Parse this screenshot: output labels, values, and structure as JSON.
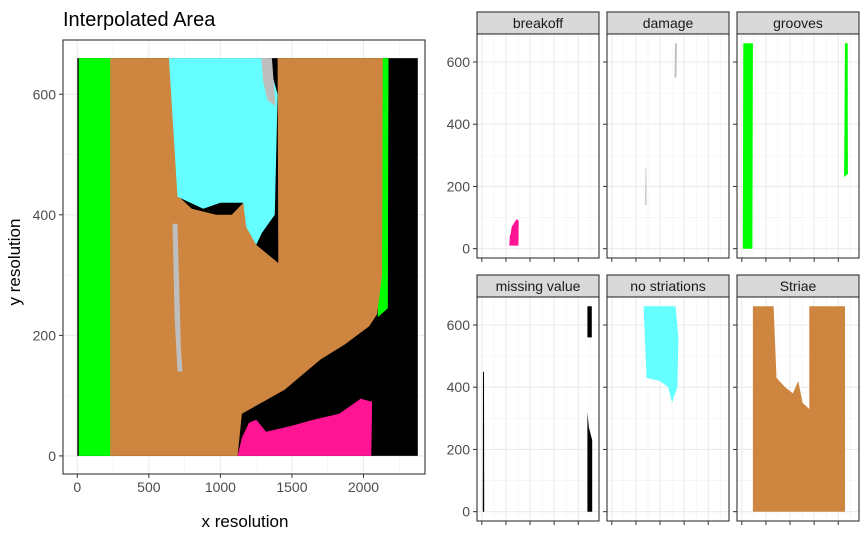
{
  "chart_data": [
    {
      "type": "heatmap",
      "title": "Interpolated Area",
      "xlabel": "x resolution",
      "ylabel": "y resolution",
      "x_ticks": [
        0,
        500,
        1000,
        1500,
        2000
      ],
      "y_ticks": [
        0,
        200,
        400,
        600
      ],
      "xlim": [
        -100,
        2430
      ],
      "ylim": [
        -30,
        690
      ],
      "grid": true,
      "categories": [
        "breakoff",
        "damage",
        "grooves",
        "missing value",
        "no striations",
        "Striae"
      ],
      "colors": {
        "breakoff": "#ff1493",
        "damage": "#bebebe",
        "grooves": "#00ff00",
        "missing value": "#000000",
        "no striations": "#66ffff",
        "Striae": "#cd853f"
      },
      "regions": [
        {
          "category": "missing value",
          "polygon": [
            [
              0,
              0
            ],
            [
              2380,
              0
            ],
            [
              2380,
              660
            ],
            [
              0,
              660
            ]
          ]
        },
        {
          "category": "grooves",
          "polygon": [
            [
              10,
              0
            ],
            [
              250,
              0
            ],
            [
              250,
              660
            ],
            [
              10,
              660
            ]
          ]
        },
        {
          "category": "grooves",
          "polygon": [
            [
              2100,
              230
            ],
            [
              2170,
              245
            ],
            [
              2175,
              660
            ],
            [
              2115,
              660
            ],
            [
              2110,
              380
            ]
          ]
        },
        {
          "category": "Striae",
          "polygon": [
            [
              230,
              0
            ],
            [
              1120,
              0
            ],
            [
              1150,
              70
            ],
            [
              1300,
              90
            ],
            [
              1450,
              110
            ],
            [
              1700,
              160
            ],
            [
              1870,
              185
            ],
            [
              2040,
              215
            ],
            [
              2095,
              235
            ],
            [
              2130,
              300
            ],
            [
              2135,
              660
            ],
            [
              1400,
              660
            ],
            [
              1405,
              320
            ],
            [
              1250,
              350
            ],
            [
              1190,
              380
            ],
            [
              1160,
              420
            ],
            [
              1080,
              400
            ],
            [
              970,
              400
            ],
            [
              800,
              410
            ],
            [
              710,
              430
            ],
            [
              660,
              660
            ],
            [
              230,
              660
            ]
          ]
        },
        {
          "category": "no striations",
          "polygon": [
            [
              640,
              660
            ],
            [
              1330,
              660
            ],
            [
              1400,
              600
            ],
            [
              1380,
              400
            ],
            [
              1290,
              370
            ],
            [
              1250,
              350
            ],
            [
              1180,
              380
            ],
            [
              1160,
              420
            ],
            [
              1000,
              420
            ],
            [
              880,
              410
            ],
            [
              700,
              430
            ]
          ]
        },
        {
          "category": "breakoff",
          "polygon": [
            [
              1120,
              0
            ],
            [
              2055,
              0
            ],
            [
              2060,
              90
            ],
            [
              1980,
              95
            ],
            [
              1830,
              70
            ],
            [
              1650,
              60
            ],
            [
              1500,
              50
            ],
            [
              1320,
              40
            ],
            [
              1250,
              60
            ],
            [
              1200,
              55
            ],
            [
              1150,
              30
            ]
          ]
        },
        {
          "category": "damage",
          "polygon": [
            [
              665,
              385
            ],
            [
              700,
              385
            ],
            [
              725,
              175
            ],
            [
              735,
              140
            ],
            [
              700,
              140
            ],
            [
              680,
              230
            ]
          ]
        },
        {
          "category": "damage",
          "polygon": [
            [
              1285,
              660
            ],
            [
              1360,
              660
            ],
            [
              1385,
              580
            ],
            [
              1330,
              590
            ],
            [
              1300,
              620
            ]
          ]
        }
      ]
    },
    {
      "type": "heatmap",
      "facets": [
        {
          "label": "breakoff",
          "color": "#ff1493",
          "polygons": [
            [
              [
                570,
                10
              ],
              [
                760,
                10
              ],
              [
                765,
                90
              ],
              [
                720,
                95
              ],
              [
                660,
                80
              ],
              [
                620,
                70
              ],
              [
                600,
                50
              ],
              [
                580,
                40
              ]
            ]
          ]
        },
        {
          "label": "damage",
          "color": "#bebebe",
          "polygons": [
            [
              [
                1300,
                550
              ],
              [
                1340,
                550
              ],
              [
                1350,
                660
              ],
              [
                1310,
                660
              ]
            ],
            [
              [
                690,
                140
              ],
              [
                720,
                140
              ],
              [
                715,
                260
              ],
              [
                700,
                260
              ]
            ]
          ]
        },
        {
          "label": "grooves",
          "color": "#00ff00",
          "polygons": [
            [
              [
                20,
                0
              ],
              [
                220,
                0
              ],
              [
                230,
                660
              ],
              [
                30,
                660
              ]
            ],
            [
              [
                2120,
                230
              ],
              [
                2200,
                240
              ],
              [
                2195,
                660
              ],
              [
                2140,
                660
              ]
            ]
          ]
        },
        {
          "label": "missing value",
          "color": "#000000",
          "polygons": [
            [
              [
                2190,
                0
              ],
              [
                2290,
                0
              ],
              [
                2290,
                230
              ],
              [
                2220,
                270
              ],
              [
                2190,
                320
              ]
            ],
            [
              [
                2190,
                560
              ],
              [
                2280,
                560
              ],
              [
                2280,
                660
              ],
              [
                2190,
                660
              ]
            ],
            [
              [
                20,
                0
              ],
              [
                50,
                0
              ],
              [
                45,
                450
              ],
              [
                25,
                450
              ]
            ]
          ]
        },
        {
          "label": "no striations",
          "color": "#66ffff",
          "polygons": [
            [
              [
                660,
                660
              ],
              [
                1320,
                660
              ],
              [
                1380,
                560
              ],
              [
                1360,
                400
              ],
              [
                1290,
                370
              ],
              [
                1250,
                350
              ],
              [
                1170,
                400
              ],
              [
                1000,
                420
              ],
              [
                720,
                430
              ]
            ]
          ]
        },
        {
          "label": "Striae",
          "color": "#cd853f",
          "polygons": [
            [
              [
                230,
                0
              ],
              [
                2140,
                0
              ],
              [
                2140,
                660
              ],
              [
                1400,
                660
              ],
              [
                1400,
                330
              ],
              [
                1260,
                350
              ],
              [
                1170,
                420
              ],
              [
                1060,
                380
              ],
              [
                900,
                400
              ],
              [
                720,
                430
              ],
              [
                660,
                660
              ],
              [
                230,
                660
              ]
            ]
          ]
        }
      ],
      "y_ticks": [
        0,
        200,
        400,
        600
      ],
      "xlim": [
        -100,
        2430
      ],
      "ylim": [
        -30,
        690
      ]
    }
  ]
}
